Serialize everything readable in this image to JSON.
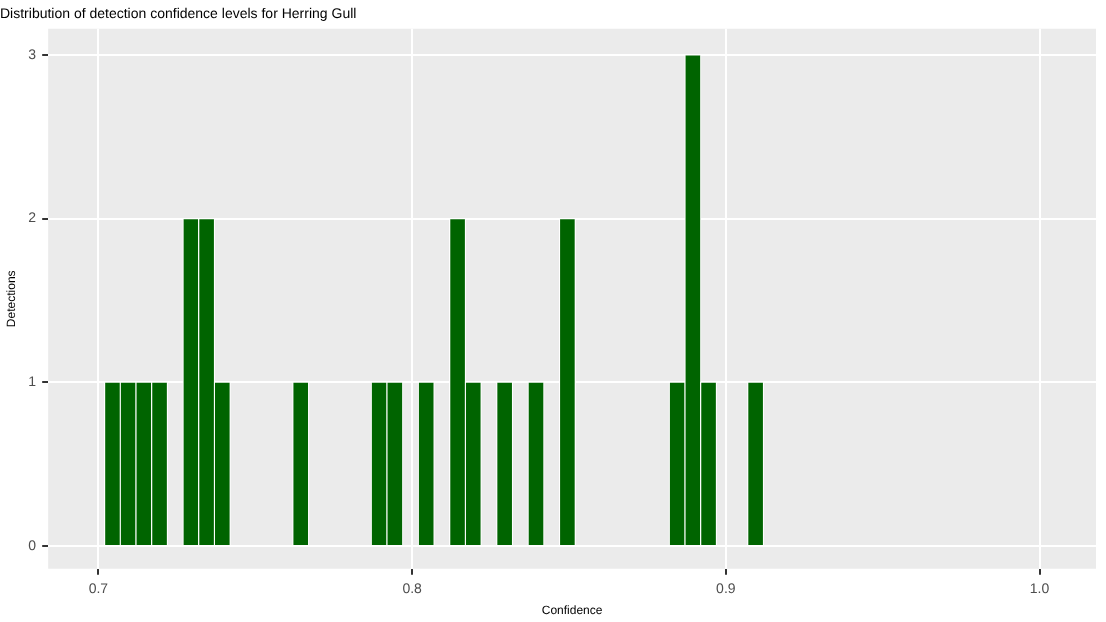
{
  "chart_data": {
    "type": "histogram",
    "title": "Distribution of detection confidence levels for Herring Gull",
    "xlabel": "Confidence",
    "ylabel": "Detections",
    "bins": [
      0.702,
      0.707,
      0.712,
      0.717,
      0.722,
      0.727,
      0.732,
      0.737,
      0.742,
      0.747,
      0.752,
      0.757,
      0.762,
      0.767,
      0.772,
      0.777,
      0.782,
      0.787,
      0.792,
      0.797,
      0.802,
      0.807,
      0.812,
      0.817,
      0.822,
      0.827,
      0.832,
      0.837,
      0.842,
      0.847,
      0.852,
      0.857,
      0.862,
      0.867,
      0.872,
      0.877,
      0.882,
      0.887,
      0.892,
      0.897,
      0.902,
      0.907,
      0.912
    ],
    "values": [
      1,
      1,
      1,
      1,
      0,
      2,
      2,
      1,
      0,
      0,
      0,
      0,
      1,
      0,
      0,
      0,
      0,
      1,
      1,
      0,
      1,
      0,
      2,
      1,
      0,
      1,
      0,
      1,
      0,
      2,
      0,
      0,
      0,
      0,
      0,
      0,
      1,
      3,
      1,
      0,
      0,
      1
    ],
    "color": "#006400",
    "xlim": [
      0.684,
      1.018
    ],
    "xticks": [
      0.7,
      0.8,
      0.9,
      {
        "value": 1,
        "label": "1.0"
      }
    ],
    "ylim": [
      -0.14,
      3.16
    ],
    "yticks": [
      0,
      1,
      2,
      3
    ],
    "grid": true
  }
}
